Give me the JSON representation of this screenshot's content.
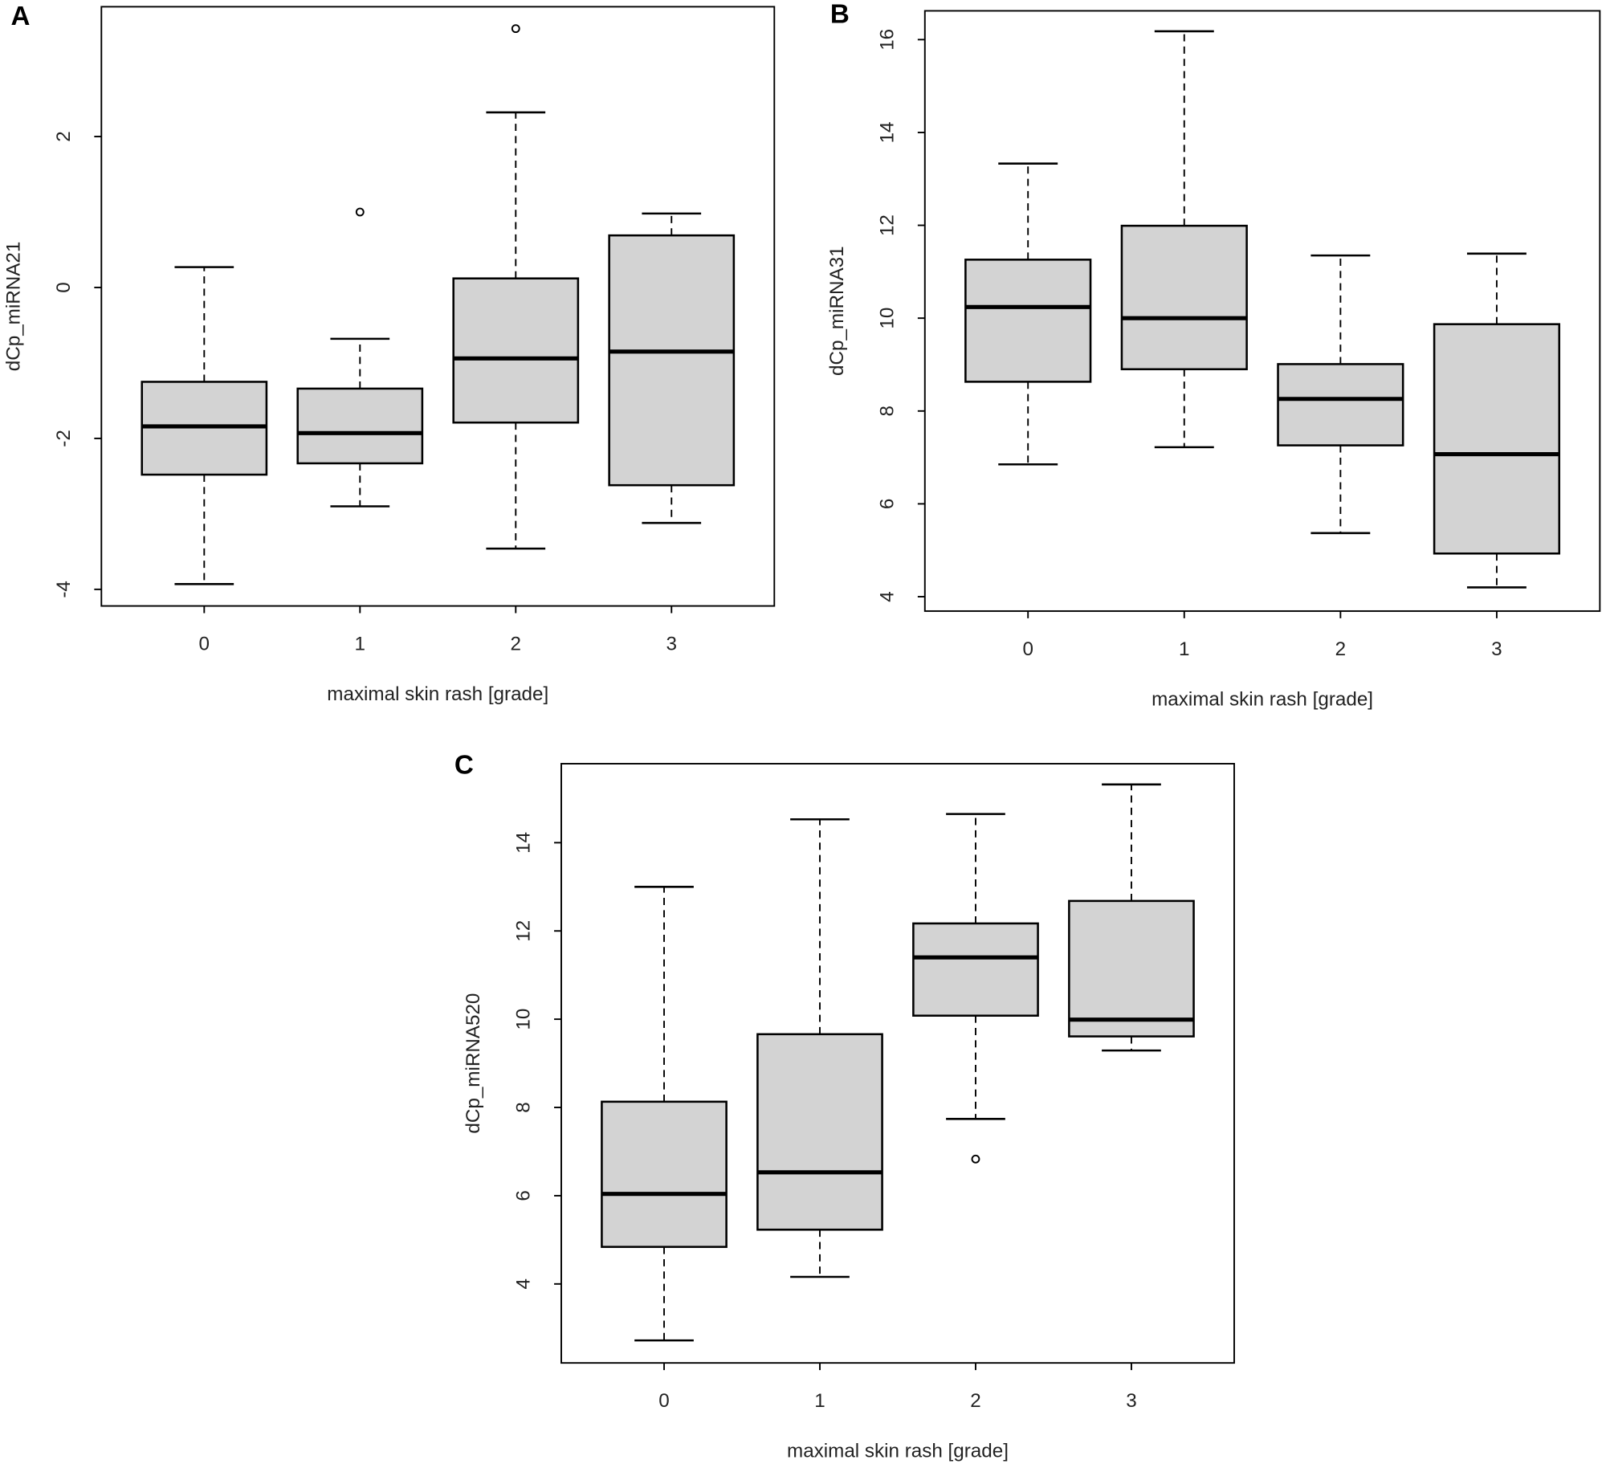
{
  "chart_data": [
    {
      "type": "box",
      "panel_label": "A",
      "ylabel": "dCp_miRNA21",
      "xlabel": "maximal skin rash [grade]",
      "categories": [
        "0",
        "1",
        "2",
        "3"
      ],
      "ylim": [
        -4.22,
        3.72
      ],
      "yticks": [
        -4,
        -2,
        0,
        2
      ],
      "box_color": "#d3d3d3",
      "boxes": [
        {
          "whisker_low": -3.93,
          "q1": -2.48,
          "median": -1.84,
          "q3": -1.25,
          "whisker_high": 0.27
        },
        {
          "whisker_low": -2.9,
          "q1": -2.33,
          "median": -1.93,
          "q3": -1.34,
          "whisker_high": -0.68,
          "outliers": [
            1.0
          ]
        },
        {
          "whisker_low": -3.46,
          "q1": -1.79,
          "median": -0.94,
          "q3": 0.12,
          "whisker_high": 2.32,
          "outliers": [
            3.43
          ]
        },
        {
          "whisker_low": -3.12,
          "q1": -2.62,
          "median": -0.85,
          "q3": 0.69,
          "whisker_high": 0.98
        }
      ]
    },
    {
      "type": "box",
      "panel_label": "B",
      "ylabel": "dCp_miRNA31",
      "xlabel": "maximal skin rash [grade]",
      "categories": [
        "0",
        "1",
        "2",
        "3"
      ],
      "ylim": [
        3.69,
        16.62
      ],
      "yticks": [
        4,
        6,
        8,
        10,
        12,
        14,
        16
      ],
      "box_color": "#d3d3d3",
      "boxes": [
        {
          "whisker_low": 6.85,
          "q1": 8.63,
          "median": 10.24,
          "q3": 11.26,
          "whisker_high": 13.33
        },
        {
          "whisker_low": 7.22,
          "q1": 8.9,
          "median": 10.0,
          "q3": 11.99,
          "whisker_high": 16.18
        },
        {
          "whisker_low": 5.37,
          "q1": 7.26,
          "median": 8.26,
          "q3": 9.01,
          "whisker_high": 11.35
        },
        {
          "whisker_low": 4.2,
          "q1": 4.93,
          "median": 7.07,
          "q3": 9.87,
          "whisker_high": 11.39
        }
      ]
    },
    {
      "type": "box",
      "panel_label": "C",
      "ylabel": "dCp_miRNA520",
      "xlabel": "maximal skin rash [grade]",
      "categories": [
        "0",
        "1",
        "2",
        "3"
      ],
      "ylim": [
        2.21,
        15.79
      ],
      "yticks": [
        4,
        6,
        8,
        10,
        12,
        14
      ],
      "box_color": "#d3d3d3",
      "boxes": [
        {
          "whisker_low": 2.72,
          "q1": 4.84,
          "median": 6.04,
          "q3": 8.13,
          "whisker_high": 13.0
        },
        {
          "whisker_low": 4.16,
          "q1": 5.23,
          "median": 6.53,
          "q3": 9.66,
          "whisker_high": 14.53
        },
        {
          "whisker_low": 7.74,
          "q1": 10.08,
          "median": 11.4,
          "q3": 12.17,
          "whisker_high": 14.65,
          "outliers": [
            6.83
          ]
        },
        {
          "whisker_low": 9.29,
          "q1": 9.61,
          "median": 9.99,
          "q3": 12.68,
          "whisker_high": 15.32
        }
      ]
    }
  ]
}
